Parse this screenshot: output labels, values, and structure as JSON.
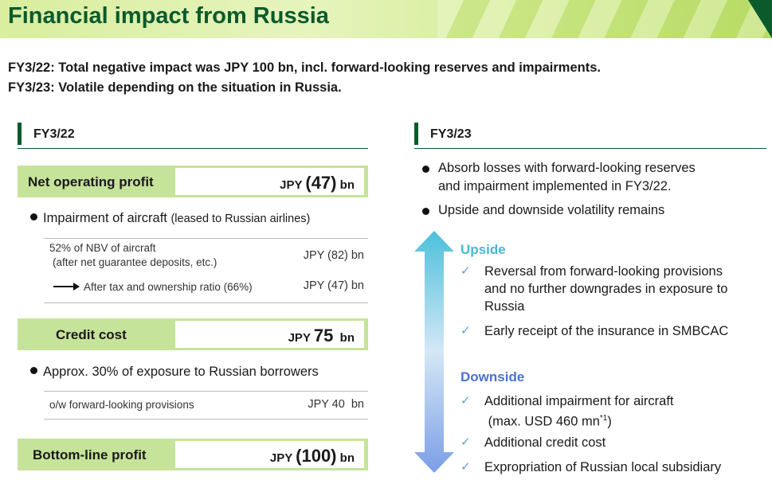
{
  "title": "Financial impact from Russia",
  "summary": {
    "line1": "FY3/22: Total negative impact was JPY 100 bn, incl. forward-looking reserves and impairments.",
    "line2": "FY3/23: Volatile depending on the situation in Russia."
  },
  "left": {
    "heading": "FY3/22",
    "net_operating_profit": {
      "label": "Net operating profit",
      "prefix": "JPY ",
      "value": "(47)",
      "suffix": " bn"
    },
    "aircraft_bullet": {
      "main": "Impairment of aircraft ",
      "note": "(leased to Russian airlines)"
    },
    "aircraft_rows": [
      {
        "label1": "52% of NBV of aircraft",
        "label2": "(after net guarantee deposits, etc.)",
        "amount": "JPY (82) bn"
      },
      {
        "label1": "After tax and ownership ratio (66%)",
        "amount": "JPY (47) bn"
      }
    ],
    "credit_cost": {
      "label": "Credit cost",
      "prefix": "JPY ",
      "value": "75",
      "suffix": "  bn"
    },
    "exposure_bullet": "Approx. 30% of exposure to Russian borrowers",
    "provision_row": {
      "label": "o/w forward-looking provisions",
      "amount": "JPY 40  bn"
    },
    "bottom_line": {
      "label": "Bottom-line profit",
      "prefix": "JPY ",
      "value": "(100)",
      "suffix": " bn"
    }
  },
  "right": {
    "heading": "FY3/23",
    "bullets": [
      {
        "line1": "Absorb losses with forward-looking reserves",
        "line2": "and impairment implemented in FY3/22."
      },
      {
        "line1": "Upside and downside volatility remains"
      }
    ],
    "upside": {
      "heading": "Upside",
      "items": [
        {
          "lines": [
            "Reversal from forward-looking provisions",
            "and no further downgrades in exposure to",
            "Russia"
          ]
        },
        {
          "lines": [
            "Early receipt of the insurance in SMBCAC"
          ]
        }
      ]
    },
    "downside": {
      "heading": "Downside",
      "item1_line1": "Additional impairment for aircraft",
      "item1_line2": " (max. USD 460 mn",
      "item1_sup": "*1",
      "item1_close": ")",
      "item2": "Additional credit cost",
      "item3": "Expropriation of Russian local subsidiary"
    },
    "check_glyph": "✓"
  },
  "colors": {
    "brand_green": "#0b5a2c",
    "metric_bg": "#c6e39a",
    "upside": "#49b6d8",
    "downside": "#4a73cf"
  }
}
